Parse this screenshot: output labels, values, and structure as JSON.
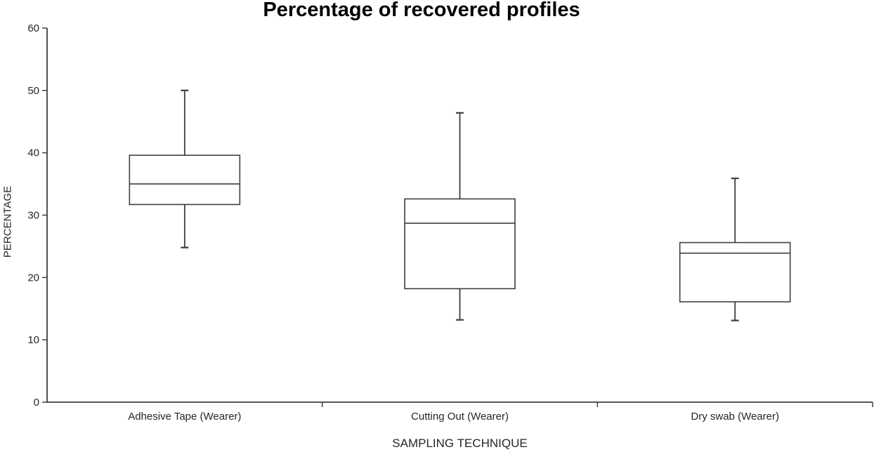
{
  "chart_data": {
    "type": "boxplot",
    "title": "Percentage of recovered profiles",
    "xlabel": "SAMPLING TECHNIQUE",
    "ylabel": "PERCENTAGE",
    "ylim": [
      0,
      60
    ],
    "yticks": [
      0,
      10,
      20,
      30,
      40,
      50,
      60
    ],
    "grid": false,
    "legend": "none",
    "categories": [
      "Adhesive Tape (Wearer)",
      "Cutting Out (Wearer)",
      "Dry swab (Wearer)"
    ],
    "series": [
      {
        "category": "Adhesive Tape (Wearer)",
        "whisker_low": 24.8,
        "q1": 31.7,
        "median": 35.0,
        "q3": 39.6,
        "whisker_high": 50.0
      },
      {
        "category": "Cutting Out (Wearer)",
        "whisker_low": 13.2,
        "q1": 18.2,
        "median": 28.7,
        "q3": 32.6,
        "whisker_high": 46.4
      },
      {
        "category": "Dry swab (Wearer)",
        "whisker_low": 13.1,
        "q1": 16.1,
        "median": 23.9,
        "q3": 25.6,
        "whisker_high": 35.9
      }
    ],
    "colors": {
      "line": "#3f3f3f",
      "text": "#262626",
      "title": "#000000",
      "box_fill": "#ffffff"
    }
  }
}
